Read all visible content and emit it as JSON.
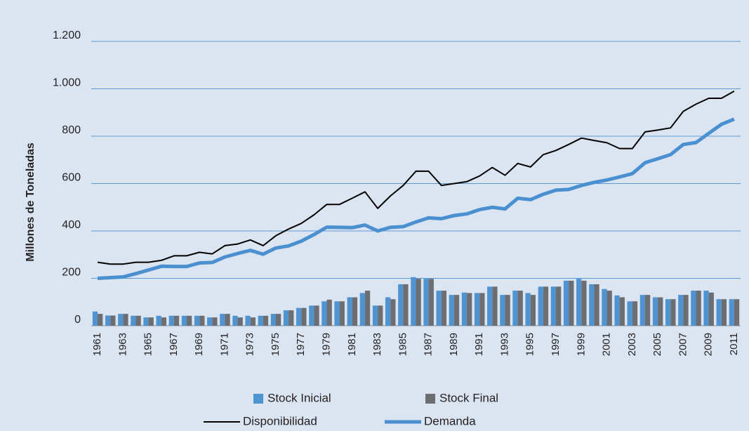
{
  "chart_data": {
    "type": "combo",
    "y_label": "Millones de Toneladas",
    "categories": [
      "1961",
      null,
      "1963",
      null,
      "1965",
      null,
      "1967",
      null,
      "1969",
      null,
      "1971",
      null,
      "1973",
      null,
      "1975",
      null,
      "1977",
      null,
      "1979",
      null,
      "1981",
      null,
      "1983",
      null,
      "1985",
      null,
      "1987",
      null,
      "1989",
      null,
      "1991",
      null,
      "1993",
      null,
      "1995",
      null,
      "1997",
      null,
      "1999",
      null,
      "2001",
      null,
      "2003",
      null,
      "2005",
      null,
      "2007",
      null,
      "2009",
      null,
      "2011"
    ],
    "ylim": [
      0,
      1200
    ],
    "yticks": [
      0,
      200,
      400,
      600,
      800,
      {
        "value": 1000,
        "label": "1.000"
      },
      {
        "value": 1200,
        "label": "1.200"
      }
    ],
    "grid": true,
    "series": [
      {
        "name": "Stock Inicial",
        "type": "bar",
        "color": "#4f93d1",
        "values": [
          60,
          43,
          50,
          42,
          35,
          42,
          42,
          42,
          42,
          35,
          50,
          42,
          42,
          42,
          50,
          65,
          75,
          85,
          103,
          103,
          120,
          138,
          85,
          120,
          175,
          205,
          198,
          148,
          130,
          140,
          138,
          165,
          130,
          148,
          138,
          165,
          165,
          190,
          198,
          175,
          155,
          128,
          103,
          130,
          120,
          112,
          130,
          148,
          148,
          112,
          112
        ]
      },
      {
        "name": "Stock Final",
        "type": "bar",
        "color": "#6d6e71",
        "values": [
          50,
          43,
          50,
          42,
          35,
          35,
          42,
          42,
          42,
          35,
          50,
          35,
          35,
          42,
          50,
          65,
          75,
          85,
          110,
          103,
          120,
          148,
          85,
          112,
          175,
          198,
          198,
          148,
          130,
          138,
          138,
          165,
          130,
          148,
          130,
          165,
          165,
          190,
          190,
          175,
          148,
          120,
          103,
          130,
          120,
          112,
          130,
          148,
          140,
          112,
          112
        ]
      },
      {
        "name": "Disponibilidad",
        "type": "line",
        "color": "#000000",
        "width": 2,
        "values": [
          268,
          260,
          260,
          268,
          268,
          276,
          295,
          295,
          310,
          303,
          338,
          345,
          362,
          338,
          380,
          408,
          432,
          468,
          512,
          512,
          538,
          565,
          495,
          548,
          592,
          652,
          652,
          592,
          600,
          608,
          632,
          668,
          635,
          685,
          670,
          722,
          740,
          765,
          792,
          782,
          772,
          748,
          748,
          818,
          826,
          835,
          905,
          935,
          960,
          960,
          990
        ]
      },
      {
        "name": "Demanda",
        "type": "line",
        "color": "#4a90d0",
        "width": 5,
        "values": [
          200,
          203,
          206,
          220,
          235,
          251,
          250,
          250,
          265,
          267,
          290,
          305,
          318,
          302,
          328,
          337,
          357,
          385,
          416,
          415,
          414,
          425,
          400,
          415,
          418,
          438,
          455,
          452,
          465,
          472,
          490,
          500,
          493,
          538,
          532,
          555,
          572,
          575,
          592,
          605,
          615,
          628,
          642,
          688,
          705,
          722,
          765,
          773,
          812,
          850,
          872
        ]
      }
    ]
  }
}
